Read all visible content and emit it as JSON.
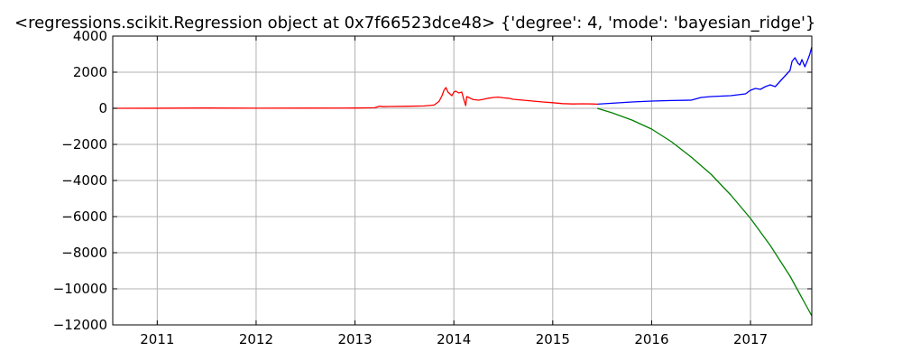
{
  "chart_data": {
    "type": "line",
    "title": "<regressions.scikit.Regression object at 0x7f66523dce48> {'degree': 4, 'mode': 'bayesian_ridge'}",
    "xlabel": "",
    "ylabel": "",
    "x_ticks": [
      "2011",
      "2012",
      "2013",
      "2014",
      "2015",
      "2016",
      "2017"
    ],
    "x_tick_values": [
      2011,
      2012,
      2013,
      2014,
      2015,
      2016,
      2017
    ],
    "xlim": [
      2010.55,
      2017.62
    ],
    "y_ticks": [
      "4000",
      "2000",
      "0",
      "−2000",
      "−4000",
      "−6000",
      "−8000",
      "−10000",
      "−12000"
    ],
    "y_tick_values": [
      4000,
      2000,
      0,
      -2000,
      -4000,
      -6000,
      -8000,
      -10000,
      -12000
    ],
    "ylim": [
      -12000,
      4000
    ],
    "grid": true,
    "series": [
      {
        "color": "#ff0000",
        "x": [
          2010.55,
          2011.0,
          2011.5,
          2012.0,
          2012.5,
          2013.0,
          2013.2,
          2013.25,
          2013.28,
          2013.35,
          2013.5,
          2013.7,
          2013.8,
          2013.85,
          2013.88,
          2013.9,
          2013.92,
          2013.94,
          2013.96,
          2013.98,
          2014.0,
          2014.02,
          2014.05,
          2014.08,
          2014.1,
          2014.12,
          2014.13,
          2014.15,
          2014.18,
          2014.2,
          2014.25,
          2014.3,
          2014.35,
          2014.4,
          2014.45,
          2014.5,
          2014.55,
          2014.6,
          2014.7,
          2014.8,
          2014.9,
          2015.0,
          2015.1,
          2015.2,
          2015.3,
          2015.4,
          2015.45
        ],
        "y": [
          0,
          2,
          15,
          5,
          10,
          15,
          30,
          120,
          90,
          100,
          110,
          130,
          180,
          380,
          700,
          1000,
          1150,
          900,
          800,
          700,
          900,
          950,
          850,
          900,
          500,
          150,
          650,
          600,
          520,
          480,
          450,
          500,
          560,
          600,
          620,
          580,
          560,
          500,
          450,
          400,
          350,
          310,
          260,
          240,
          250,
          240,
          230
        ]
      },
      {
        "color": "#0000ff",
        "x": [
          2015.45,
          2015.6,
          2015.8,
          2016.0,
          2016.2,
          2016.4,
          2016.5,
          2016.6,
          2016.8,
          2016.95,
          2017.0,
          2017.05,
          2017.1,
          2017.15,
          2017.2,
          2017.25,
          2017.3,
          2017.35,
          2017.4,
          2017.42,
          2017.45,
          2017.48,
          2017.5,
          2017.52,
          2017.55,
          2017.58,
          2017.6,
          2017.62
        ],
        "y": [
          230,
          280,
          350,
          400,
          430,
          450,
          600,
          650,
          700,
          800,
          1000,
          1100,
          1050,
          1200,
          1300,
          1200,
          1500,
          1800,
          2100,
          2600,
          2800,
          2500,
          2400,
          2700,
          2300,
          2700,
          3000,
          3400
        ]
      },
      {
        "color": "#008000",
        "x": [
          2015.45,
          2015.6,
          2015.8,
          2016.0,
          2016.2,
          2016.4,
          2016.6,
          2016.8,
          2017.0,
          2017.2,
          2017.4,
          2017.5,
          2017.62
        ],
        "y": [
          0,
          -250,
          -650,
          -1150,
          -1850,
          -2700,
          -3650,
          -4800,
          -6100,
          -7600,
          -9300,
          -10300,
          -11500
        ]
      }
    ]
  }
}
